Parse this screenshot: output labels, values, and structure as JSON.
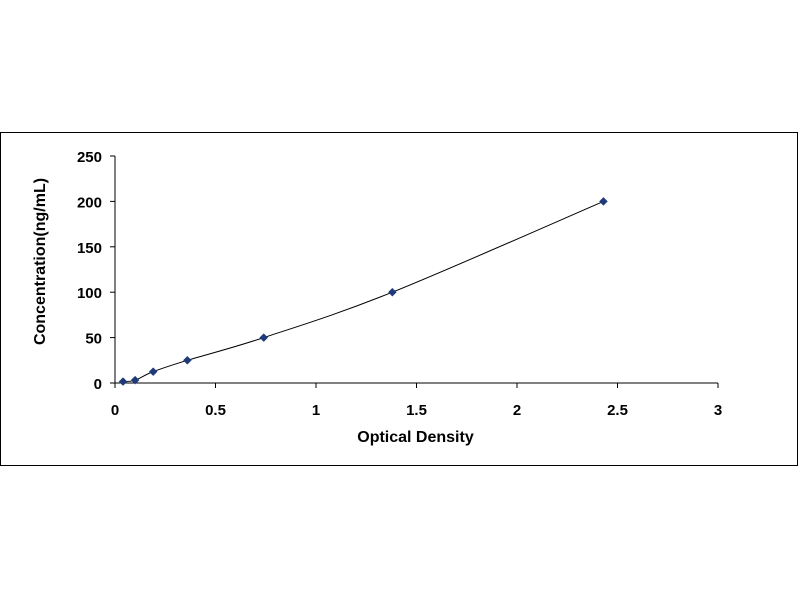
{
  "chart_data": {
    "type": "scatter",
    "xlabel": "Optical Density",
    "ylabel": "Concentration(ng/mL)",
    "xlim": [
      0,
      3
    ],
    "ylim": [
      0,
      250
    ],
    "x_ticks": [
      "0",
      "0.5",
      "1",
      "1.5",
      "2",
      "2.5",
      "3"
    ],
    "y_ticks": [
      "0",
      "50",
      "100",
      "150",
      "200",
      "250"
    ],
    "grid": false,
    "legend": "none",
    "trendline": "smooth curve through points",
    "series": [
      {
        "color": "#1f3a7a",
        "marker": "diamond",
        "points": [
          {
            "x": 0.04,
            "y": 1.56
          },
          {
            "x": 0.1,
            "y": 3.12
          },
          {
            "x": 0.19,
            "y": 12.5
          },
          {
            "x": 0.36,
            "y": 25
          },
          {
            "x": 0.74,
            "y": 50
          },
          {
            "x": 1.38,
            "y": 100
          },
          {
            "x": 2.43,
            "y": 200
          }
        ]
      }
    ]
  }
}
